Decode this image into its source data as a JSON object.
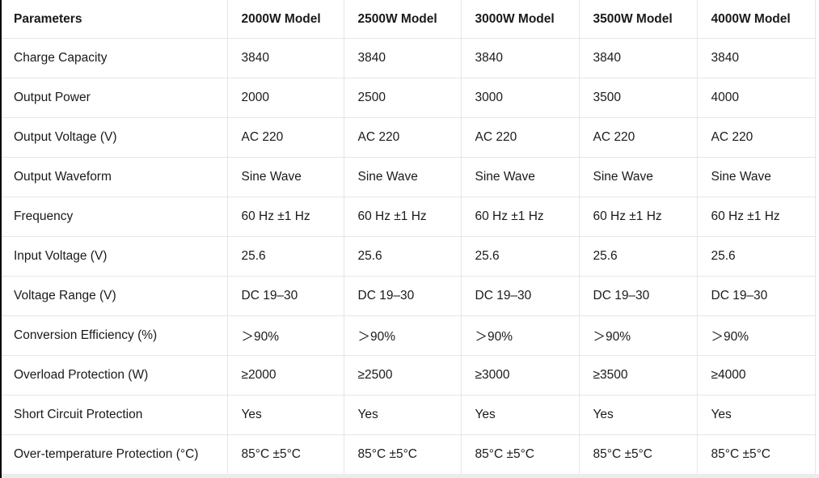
{
  "page": {
    "background": "#ffffff",
    "text_color": "#1a1a1a",
    "border_color": "#e6e6ea",
    "left_edge_color": "#000000",
    "bottom_strip_color": "#ececec"
  },
  "table": {
    "headers": [
      "Parameters",
      "2000W Model",
      "2500W Model",
      "3000W Model",
      "3500W Model",
      "4000W Model"
    ],
    "rows": [
      {
        "param": "Charge Capacity",
        "values": [
          "3840",
          "3840",
          "3840",
          "3840",
          "3840"
        ]
      },
      {
        "param": "Output Power",
        "values": [
          "2000",
          "2500",
          "3000",
          "3500",
          "4000"
        ]
      },
      {
        "param": "Output Voltage (V)",
        "values": [
          "AC 220",
          "AC 220",
          "AC 220",
          "AC 220",
          "AC 220"
        ]
      },
      {
        "param": "Output Waveform",
        "values": [
          "Sine Wave",
          "Sine Wave",
          "Sine Wave",
          "Sine Wave",
          "Sine Wave"
        ]
      },
      {
        "param": "Frequency",
        "values": [
          "60 Hz ±1 Hz",
          "60 Hz ±1 Hz",
          "60 Hz ±1 Hz",
          "60 Hz ±1 Hz",
          "60 Hz ±1 Hz"
        ]
      },
      {
        "param": "Input Voltage (V)",
        "values": [
          "25.6",
          "25.6",
          "25.6",
          "25.6",
          "25.6"
        ]
      },
      {
        "param": "Voltage Range (V)",
        "values": [
          "DC 19–30",
          "DC 19–30",
          "DC 19–30",
          "DC 19–30",
          "DC 19–30"
        ]
      },
      {
        "param": "Conversion Efficiency (%)",
        "values": [
          "＞90%",
          "＞90%",
          "＞90%",
          "＞90%",
          "＞90%"
        ]
      },
      {
        "param": "Overload Protection (W)",
        "values": [
          "≥2000",
          "≥2500",
          "≥3000",
          "≥3500",
          "≥4000"
        ]
      },
      {
        "param": "Short Circuit Protection",
        "values": [
          "Yes",
          "Yes",
          "Yes",
          "Yes",
          "Yes"
        ]
      },
      {
        "param": "Over-temperature Protection (°C)",
        "values": [
          "85°C ±5°C",
          "85°C ±5°C",
          "85°C ±5°C",
          "85°C ±5°C",
          "85°C ±5°C"
        ]
      }
    ]
  }
}
